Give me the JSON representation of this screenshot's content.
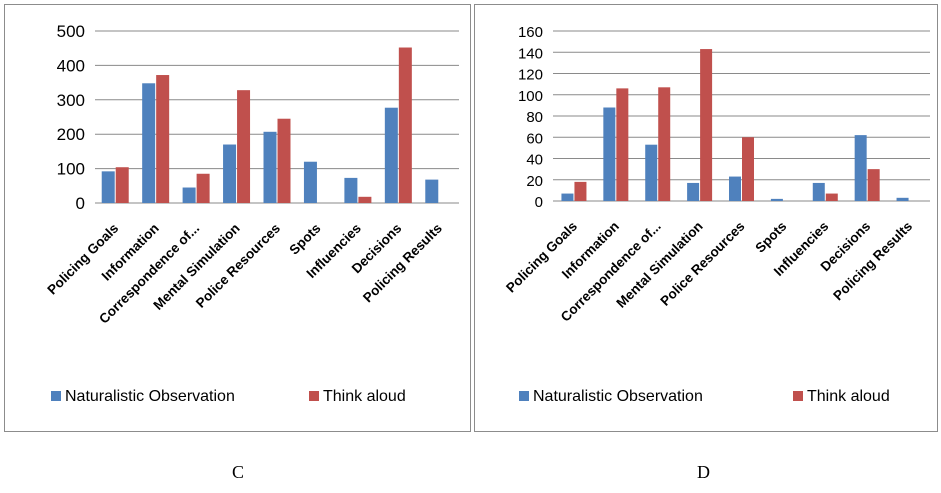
{
  "chart_data": [
    {
      "type": "bar",
      "categories": [
        "Policing Goals",
        "Information",
        "Correspondence of...",
        "Mental Simulation",
        "Police Resources",
        "Spots",
        "Influencies",
        "Decisions",
        "Policing Results"
      ],
      "series": [
        {
          "name": "Naturalistic Observation",
          "color": "#4F81BD",
          "values": [
            92,
            348,
            45,
            170,
            207,
            120,
            73,
            277,
            68
          ]
        },
        {
          "name": "Think aloud",
          "color": "#C0504D",
          "values": [
            104,
            372,
            85,
            328,
            245,
            0,
            18,
            452,
            0
          ]
        }
      ],
      "ylim": [
        0,
        500
      ],
      "yticks": [
        0,
        100,
        200,
        300,
        400,
        500
      ],
      "grid": true,
      "legend": "bottom"
    },
    {
      "type": "bar",
      "categories": [
        "Policing Goals",
        "Information",
        "Correspondence of...",
        "Mental Simulation",
        "Police Resources",
        "Spots",
        "Influencies",
        "Decisions",
        "Policing Results"
      ],
      "series": [
        {
          "name": "Naturalistic Observation",
          "color": "#4F81BD",
          "values": [
            7,
            88,
            53,
            17,
            23,
            2,
            17,
            62,
            3
          ]
        },
        {
          "name": "Think aloud",
          "color": "#C0504D",
          "values": [
            18,
            106,
            107,
            143,
            60,
            0,
            7,
            30,
            0
          ]
        }
      ],
      "ylim": [
        0,
        160
      ],
      "yticks": [
        0,
        20,
        40,
        60,
        80,
        100,
        120,
        140,
        160
      ],
      "grid": true,
      "legend": "bottom"
    }
  ],
  "captions": {
    "left": "C",
    "right": "D"
  }
}
